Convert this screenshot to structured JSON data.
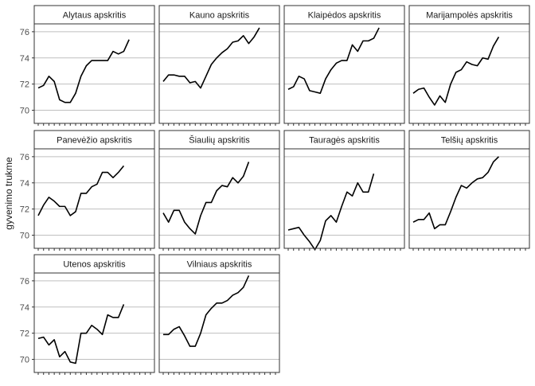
{
  "chart_data": {
    "type": "line",
    "ylabel": "gyvenimo trukme",
    "xlabel": "",
    "ylim": [
      69.0,
      76.6
    ],
    "y_ticks": [
      70,
      72,
      74,
      76
    ],
    "y_tick_labels": [
      "70",
      "72",
      "74",
      "76"
    ],
    "x_tick_count": 22,
    "x_tick_labels_visible": false,
    "grid": "horizontal",
    "line_color": "#000000",
    "x_index": [
      1,
      2,
      3,
      4,
      5,
      6,
      7,
      8,
      9,
      10,
      11,
      12,
      13,
      14,
      15,
      16,
      17,
      18,
      19,
      20,
      21,
      22
    ],
    "series": [
      {
        "name": "Alytaus apskritis",
        "values": [
          71.7,
          71.9,
          72.6,
          72.2,
          70.8,
          70.6,
          70.6,
          71.3,
          72.6,
          73.4,
          73.8,
          73.8,
          73.8,
          73.8,
          74.5,
          74.3,
          74.5,
          75.4
        ]
      },
      {
        "name": "Kauno apskritis",
        "values": [
          72.2,
          72.7,
          72.7,
          72.6,
          72.6,
          72.1,
          72.2,
          71.7,
          72.6,
          73.5,
          74.0,
          74.4,
          74.7,
          75.2,
          75.3,
          75.7,
          75.1,
          75.6,
          76.3
        ]
      },
      {
        "name": "Klaipėdos apskritis",
        "values": [
          71.6,
          71.8,
          72.6,
          72.4,
          71.5,
          71.4,
          71.3,
          72.4,
          73.1,
          73.6,
          73.8,
          73.8,
          75.0,
          74.5,
          75.3,
          75.3,
          75.5,
          76.3
        ]
      },
      {
        "name": "Marijampolės apskritis",
        "values": [
          71.3,
          71.6,
          71.7,
          71.0,
          70.4,
          71.1,
          70.6,
          72.0,
          72.9,
          73.1,
          73.7,
          73.5,
          73.4,
          74.0,
          73.9,
          74.9,
          75.6
        ]
      },
      {
        "name": "Panevėžio apskritis",
        "values": [
          71.5,
          72.3,
          72.9,
          72.6,
          72.2,
          72.2,
          71.5,
          71.8,
          73.2,
          73.2,
          73.7,
          73.9,
          74.8,
          74.8,
          74.4,
          74.8,
          75.3
        ]
      },
      {
        "name": "Šiaulių apskritis",
        "values": [
          71.7,
          71.0,
          71.9,
          71.9,
          71.0,
          70.5,
          70.1,
          71.5,
          72.5,
          72.5,
          73.4,
          73.8,
          73.7,
          74.4,
          74.0,
          74.5,
          75.6
        ]
      },
      {
        "name": "Tauragės apskritis",
        "values": [
          70.4,
          70.5,
          70.6,
          70.0,
          69.5,
          68.9,
          69.6,
          71.1,
          71.5,
          71.0,
          72.2,
          73.3,
          73.0,
          74.0,
          73.3,
          73.3,
          74.7
        ]
      },
      {
        "name": "Telšių apskritis",
        "values": [
          71.0,
          71.2,
          71.2,
          71.7,
          70.5,
          70.8,
          70.8,
          71.8,
          72.9,
          73.8,
          73.6,
          74.0,
          74.3,
          74.4,
          74.8,
          75.6,
          76.0
        ]
      },
      {
        "name": "Utenos apskritis",
        "values": [
          71.6,
          71.7,
          71.1,
          71.5,
          70.2,
          70.6,
          69.8,
          69.7,
          72.0,
          72.0,
          72.6,
          72.3,
          71.9,
          73.4,
          73.2,
          73.2,
          74.2
        ]
      },
      {
        "name": "Vilniaus apskritis",
        "values": [
          71.9,
          71.9,
          72.3,
          72.5,
          71.8,
          71.0,
          71.0,
          72.0,
          73.4,
          73.9,
          74.3,
          74.3,
          74.5,
          74.9,
          75.1,
          75.5,
          76.4
        ]
      }
    ]
  }
}
